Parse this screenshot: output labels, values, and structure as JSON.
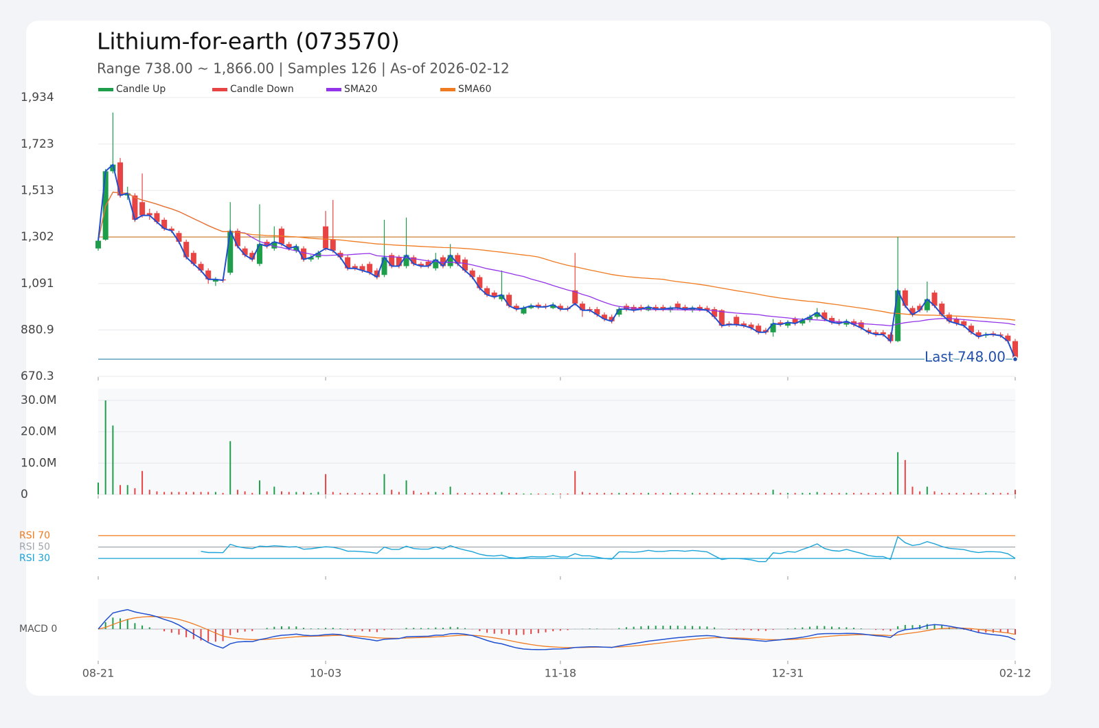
{
  "chart_data": {
    "type": "candlestick",
    "title": "Lithium-for-earth (073570)",
    "subtitle": "Range 738.00 ~ 1,866.00 | Samples 126 | As-of 2026-02-12",
    "series": [
      {
        "name": "Candle Up",
        "color": "#1e9e4a"
      },
      {
        "name": "Candle Down",
        "color": "#e84444"
      },
      {
        "name": "SMA20",
        "color": "#9333ea"
      },
      {
        "name": "SMA60",
        "color": "#f07a1f"
      }
    ],
    "close_line_color": "#1e4fd0",
    "categories": [
      "08-21",
      null,
      null,
      null,
      null,
      null,
      null,
      null,
      null,
      null,
      null,
      null,
      null,
      null,
      null,
      null,
      null,
      null,
      null,
      null,
      null,
      null,
      null,
      null,
      null,
      null,
      null,
      null,
      null,
      null,
      null,
      "10-03",
      null,
      null,
      null,
      null,
      null,
      null,
      null,
      null,
      null,
      null,
      null,
      null,
      null,
      null,
      null,
      null,
      null,
      null,
      null,
      null,
      null,
      null,
      null,
      null,
      null,
      null,
      null,
      null,
      null,
      null,
      null,
      "11-18",
      null,
      null,
      null,
      null,
      null,
      null,
      null,
      null,
      null,
      null,
      null,
      null,
      null,
      null,
      null,
      null,
      null,
      null,
      null,
      null,
      null,
      null,
      null,
      null,
      null,
      null,
      null,
      null,
      null,
      null,
      "12-31",
      null,
      null,
      null,
      null,
      null,
      null,
      null,
      null,
      null,
      null,
      null,
      null,
      null,
      null,
      null,
      null,
      null,
      null,
      null,
      null,
      null,
      null,
      null,
      null,
      null,
      null,
      null,
      null,
      null,
      null,
      "02-12"
    ],
    "open": [
      1250,
      1290,
      1600,
      1640,
      1490,
      1490,
      1460,
      1410,
      1410,
      1380,
      1340,
      1320,
      1280,
      1230,
      1180,
      1150,
      1100,
      1110,
      1140,
      1330,
      1250,
      1230,
      1180,
      1280,
      1250,
      1340,
      1270,
      1240,
      1250,
      1200,
      1210,
      1350,
      1290,
      1230,
      1210,
      1170,
      1170,
      1180,
      1150,
      1130,
      1220,
      1210,
      1170,
      1210,
      1180,
      1190,
      1160,
      1210,
      1170,
      1220,
      1200,
      1150,
      1120,
      1070,
      1050,
      1020,
      1040,
      990,
      955,
      980,
      995,
      990,
      980,
      990,
      980,
      1060,
      1000,
      975,
      975,
      950,
      940,
      950,
      990,
      985,
      985,
      970,
      985,
      985,
      970,
      1000,
      985,
      970,
      985,
      980,
      975,
      970,
      910,
      940,
      910,
      905,
      900,
      880,
      870,
      915,
      900,
      930,
      910,
      925,
      940,
      960,
      935,
      920,
      905,
      920,
      915,
      880,
      870,
      870,
      860,
      830,
      1060,
      980,
      990,
      970,
      1050,
      1000,
      950,
      930,
      920,
      900,
      870,
      855,
      865,
      860,
      855,
      830
    ],
    "high": [
      1300,
      1610,
      1866,
      1660,
      1530,
      1500,
      1590,
      1430,
      1420,
      1390,
      1350,
      1330,
      1290,
      1240,
      1190,
      1160,
      1120,
      1120,
      1460,
      1340,
      1260,
      1240,
      1450,
      1290,
      1350,
      1350,
      1280,
      1270,
      1260,
      1220,
      1240,
      1420,
      1470,
      1240,
      1220,
      1180,
      1180,
      1190,
      1160,
      1380,
      1230,
      1220,
      1390,
      1220,
      1190,
      1200,
      1230,
      1220,
      1270,
      1230,
      1210,
      1160,
      1130,
      1080,
      1060,
      1150,
      1050,
      1000,
      990,
      1000,
      1005,
      1000,
      1005,
      1000,
      990,
      1230,
      1010,
      985,
      985,
      960,
      950,
      985,
      1000,
      995,
      995,
      995,
      995,
      995,
      990,
      1010,
      995,
      990,
      995,
      990,
      985,
      975,
      920,
      950,
      920,
      915,
      910,
      890,
      930,
      925,
      925,
      940,
      935,
      950,
      980,
      970,
      945,
      930,
      930,
      930,
      925,
      890,
      880,
      880,
      870,
      1302,
      1070,
      990,
      1000,
      1100,
      1060,
      1010,
      960,
      940,
      930,
      910,
      880,
      870,
      875,
      870,
      865,
      840
    ],
    "low": [
      1240,
      1285,
      1590,
      1480,
      1470,
      1370,
      1390,
      1380,
      1360,
      1330,
      1320,
      1270,
      1200,
      1170,
      1140,
      1090,
      1080,
      1095,
      1130,
      1250,
      1210,
      1190,
      1170,
      1250,
      1240,
      1260,
      1240,
      1230,
      1190,
      1190,
      1200,
      1240,
      1230,
      1200,
      1150,
      1150,
      1140,
      1130,
      1110,
      1120,
      1160,
      1160,
      1160,
      1170,
      1160,
      1160,
      1150,
      1160,
      1160,
      1170,
      1140,
      1110,
      1060,
      1030,
      1020,
      1010,
      980,
      965,
      950,
      975,
      975,
      975,
      975,
      965,
      965,
      990,
      940,
      960,
      940,
      920,
      910,
      940,
      965,
      960,
      965,
      965,
      965,
      965,
      960,
      970,
      965,
      960,
      965,
      960,
      930,
      890,
      895,
      895,
      890,
      880,
      860,
      860,
      850,
      895,
      890,
      900,
      900,
      915,
      930,
      920,
      905,
      900,
      895,
      895,
      880,
      860,
      850,
      850,
      820,
      825,
      980,
      940,
      960,
      960,
      980,
      940,
      910,
      900,
      890,
      860,
      840,
      845,
      850,
      845,
      820,
      738
    ],
    "close": [
      1285,
      1600,
      1630,
      1490,
      1500,
      1380,
      1400,
      1400,
      1370,
      1340,
      1330,
      1280,
      1210,
      1180,
      1150,
      1110,
      1110,
      1105,
      1330,
      1260,
      1220,
      1200,
      1270,
      1260,
      1280,
      1270,
      1250,
      1260,
      1200,
      1210,
      1230,
      1250,
      1240,
      1210,
      1160,
      1160,
      1150,
      1140,
      1120,
      1210,
      1170,
      1170,
      1220,
      1180,
      1170,
      1170,
      1200,
      1170,
      1220,
      1180,
      1150,
      1120,
      1070,
      1040,
      1030,
      1040,
      990,
      975,
      980,
      990,
      985,
      985,
      995,
      975,
      975,
      1000,
      970,
      970,
      950,
      930,
      920,
      975,
      975,
      970,
      975,
      985,
      975,
      975,
      980,
      980,
      975,
      980,
      975,
      970,
      940,
      900,
      905,
      905,
      900,
      890,
      870,
      870,
      910,
      905,
      915,
      910,
      925,
      940,
      960,
      930,
      915,
      910,
      920,
      905,
      890,
      870,
      860,
      860,
      830,
      1060,
      990,
      950,
      970,
      1020,
      990,
      950,
      920,
      910,
      900,
      870,
      850,
      860,
      860,
      855,
      830,
      748
    ],
    "volume": [
      3800000,
      30000000,
      22000000,
      3000000,
      3000000,
      2000000,
      7500000,
      1500000,
      1000000,
      800000,
      800000,
      800000,
      800000,
      800000,
      800000,
      800000,
      800000,
      500000,
      17000000,
      1500000,
      1000000,
      500000,
      4500000,
      1000000,
      2500000,
      1000000,
      800000,
      800000,
      800000,
      500000,
      800000,
      6500000,
      800000,
      500000,
      500000,
      500000,
      500000,
      500000,
      500000,
      6500000,
      1500000,
      800000,
      4500000,
      1200000,
      500000,
      800000,
      800000,
      500000,
      2500000,
      500000,
      500000,
      500000,
      500000,
      500000,
      500000,
      800000,
      500000,
      500000,
      300000,
      300000,
      300000,
      300000,
      300000,
      300000,
      300000,
      7500000,
      800000,
      500000,
      500000,
      500000,
      500000,
      500000,
      500000,
      500000,
      500000,
      500000,
      500000,
      500000,
      500000,
      500000,
      500000,
      500000,
      500000,
      500000,
      500000,
      500000,
      500000,
      500000,
      500000,
      500000,
      500000,
      500000,
      1500000,
      500000,
      500000,
      500000,
      500000,
      500000,
      800000,
      500000,
      500000,
      500000,
      500000,
      500000,
      500000,
      500000,
      500000,
      500000,
      800000,
      13500000,
      11000000,
      2500000,
      1000000,
      2500000,
      1000000,
      500000,
      500000,
      500000,
      500000,
      500000,
      500000,
      500000,
      500000,
      500000,
      500000,
      1500000
    ],
    "ylim": [
      670.3,
      1934
    ],
    "yticks": [
      670.3,
      880.9,
      {
        "value": 1091,
        "label": "1,091"
      },
      {
        "value": 1302,
        "label": "1,302"
      },
      {
        "value": 1513,
        "label": "1,513"
      },
      {
        "value": 1723,
        "label": "1,723"
      },
      {
        "value": 1934,
        "label": "1,934"
      }
    ],
    "hline": {
      "value": 1302,
      "color": "#c8701e"
    },
    "last_label": "Last 748.00",
    "last_color": "#1f4fa8",
    "volume_ylim": [
      0,
      32000000
    ],
    "volume_yticks": [
      0,
      {
        "value": 10000000,
        "label": "10.0M"
      },
      {
        "value": 20000000,
        "label": "20.0M"
      },
      {
        "value": 30000000,
        "label": "30.0M"
      }
    ],
    "rsi_ylim": [
      0,
      100
    ],
    "rsi_color": "#1aa3d9",
    "rsi_levels": [
      {
        "value": 70,
        "label": "RSI 70",
        "color": "#f07a1f"
      },
      {
        "value": 50,
        "label": "RSI 50",
        "color": "#a0a4ab"
      },
      {
        "value": 30,
        "label": "RSI 30",
        "color": "#1aa3d9"
      }
    ],
    "macd_ylim": [
      -90,
      90
    ],
    "macd_zero": {
      "value": 0,
      "label": "MACD 0"
    },
    "macd_color": "#1e4fd0",
    "signal_color": "#f07a1f",
    "grid": true
  }
}
